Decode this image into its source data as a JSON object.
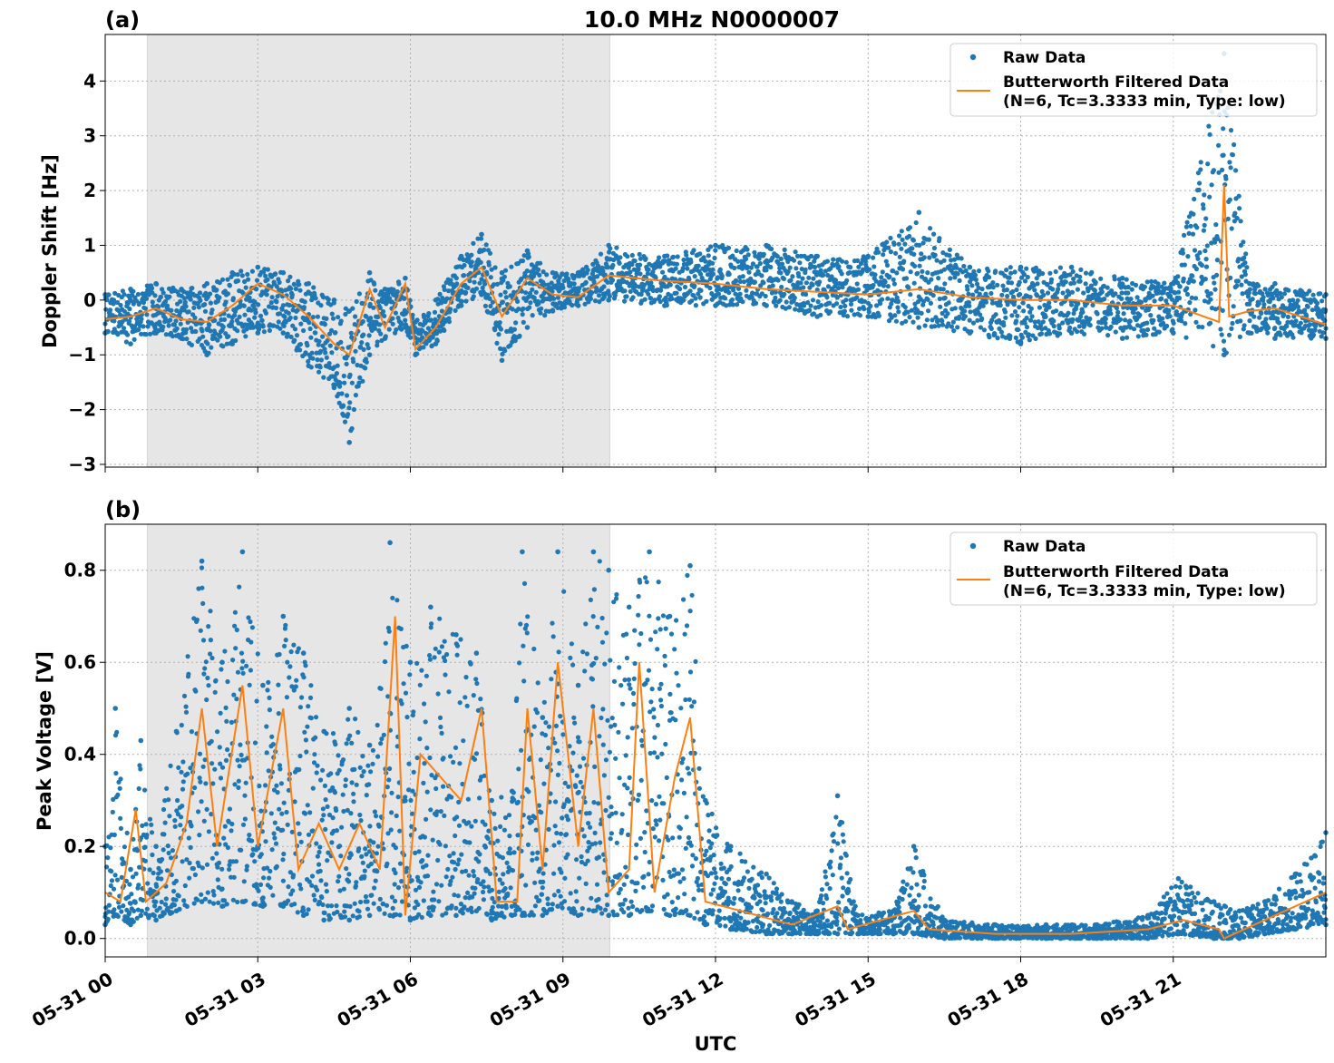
{
  "figure": {
    "title": "10.0 MHz N0000007",
    "xlabel": "UTC",
    "x_ticks": [
      "05-31 00",
      "05-31 03",
      "05-31 06",
      "05-31 09",
      "05-31 12",
      "05-31 15",
      "05-31 18",
      "05-31 21"
    ],
    "colors": {
      "raw": "#1f77b4",
      "filtered": "#ff7f0e",
      "shade": "#e6e6e6",
      "grid": "#b0b0b0"
    }
  },
  "chart_data": [
    {
      "type": "scatter",
      "panel": "(a)",
      "title": "10.0 MHz N0000007",
      "xlabel": "UTC",
      "ylabel": "Doppler Shift [Hz]",
      "xlim_hours": [
        0,
        24
      ],
      "ylim": [
        -3.05,
        4.85
      ],
      "y_ticks": [
        4,
        3,
        2,
        1,
        0,
        -1,
        -2,
        -3
      ],
      "y_tick_labels": [
        "4",
        "3",
        "2",
        "1",
        "0",
        "−1",
        "−2",
        "−3"
      ],
      "grid": true,
      "legend_position": "top-right",
      "shaded_interval_hours": [
        0.83,
        9.92
      ],
      "series": [
        {
          "name": "Raw Data",
          "style": "points",
          "envelope": [
            {
              "hour": 0.0,
              "low": -0.6,
              "high": 0.1
            },
            {
              "hour": 0.5,
              "low": -0.8,
              "high": 0.2
            },
            {
              "hour": 1.0,
              "low": -0.6,
              "high": 0.3
            },
            {
              "hour": 1.5,
              "low": -0.7,
              "high": 0.2
            },
            {
              "hour": 2.0,
              "low": -1.0,
              "high": 0.3
            },
            {
              "hour": 2.5,
              "low": -0.8,
              "high": 0.5
            },
            {
              "hour": 3.0,
              "low": -0.6,
              "high": 0.6
            },
            {
              "hour": 3.5,
              "low": -0.6,
              "high": 0.5
            },
            {
              "hour": 4.0,
              "low": -1.2,
              "high": 0.3
            },
            {
              "hour": 4.5,
              "low": -1.6,
              "high": 0.0
            },
            {
              "hour": 4.8,
              "low": -2.6,
              "high": -0.2
            },
            {
              "hour": 5.2,
              "low": -1.0,
              "high": 0.5
            },
            {
              "hour": 5.5,
              "low": -0.7,
              "high": 0.2
            },
            {
              "hour": 5.9,
              "low": -0.5,
              "high": 0.4
            },
            {
              "hour": 6.1,
              "low": -1.0,
              "high": -0.4
            },
            {
              "hour": 6.5,
              "low": -0.8,
              "high": 0.0
            },
            {
              "hour": 7.0,
              "low": -0.1,
              "high": 0.8
            },
            {
              "hour": 7.4,
              "low": 0.1,
              "high": 1.2
            },
            {
              "hour": 7.8,
              "low": -1.1,
              "high": 0.5
            },
            {
              "hour": 8.3,
              "low": -0.5,
              "high": 0.9
            },
            {
              "hour": 8.8,
              "low": -0.2,
              "high": 0.5
            },
            {
              "hour": 9.3,
              "low": -0.1,
              "high": 0.5
            },
            {
              "hour": 9.9,
              "low": 0.0,
              "high": 1.0
            },
            {
              "hour": 11.0,
              "low": -0.1,
              "high": 0.8
            },
            {
              "hour": 12.0,
              "low": -0.1,
              "high": 1.0
            },
            {
              "hour": 13.0,
              "low": -0.1,
              "high": 1.0
            },
            {
              "hour": 14.0,
              "low": -0.3,
              "high": 0.8
            },
            {
              "hour": 15.0,
              "low": -0.3,
              "high": 0.8
            },
            {
              "hour": 16.0,
              "low": -0.5,
              "high": 1.6
            },
            {
              "hour": 17.0,
              "low": -0.6,
              "high": 0.6
            },
            {
              "hour": 18.0,
              "low": -0.8,
              "high": 0.6
            },
            {
              "hour": 19.0,
              "low": -0.6,
              "high": 0.6
            },
            {
              "hour": 20.0,
              "low": -0.7,
              "high": 0.4
            },
            {
              "hour": 21.0,
              "low": -0.6,
              "high": 0.3
            },
            {
              "hour": 22.0,
              "low": -1.0,
              "high": 4.5
            },
            {
              "hour": 22.5,
              "low": -0.6,
              "high": 0.3
            },
            {
              "hour": 23.0,
              "low": -0.7,
              "high": 0.3
            },
            {
              "hour": 24.0,
              "low": -0.7,
              "high": 0.1
            }
          ]
        },
        {
          "name": "Butterworth Filtered Data\n(N=6, Tc=3.3333 min, Type: low)",
          "style": "line",
          "points": [
            {
              "hour": 0.0,
              "y": -0.35
            },
            {
              "hour": 0.5,
              "y": -0.3
            },
            {
              "hour": 1.0,
              "y": -0.15
            },
            {
              "hour": 1.5,
              "y": -0.35
            },
            {
              "hour": 2.0,
              "y": -0.4
            },
            {
              "hour": 2.5,
              "y": -0.1
            },
            {
              "hour": 3.0,
              "y": 0.3
            },
            {
              "hour": 3.5,
              "y": 0.1
            },
            {
              "hour": 4.0,
              "y": -0.3
            },
            {
              "hour": 4.5,
              "y": -0.8
            },
            {
              "hour": 4.8,
              "y": -1.0
            },
            {
              "hour": 5.2,
              "y": 0.2
            },
            {
              "hour": 5.5,
              "y": -0.5
            },
            {
              "hour": 5.9,
              "y": 0.3
            },
            {
              "hour": 6.1,
              "y": -0.9
            },
            {
              "hour": 6.5,
              "y": -0.5
            },
            {
              "hour": 7.0,
              "y": 0.3
            },
            {
              "hour": 7.4,
              "y": 0.6
            },
            {
              "hour": 7.8,
              "y": -0.3
            },
            {
              "hour": 8.3,
              "y": 0.4
            },
            {
              "hour": 8.8,
              "y": 0.1
            },
            {
              "hour": 9.3,
              "y": 0.05
            },
            {
              "hour": 9.9,
              "y": 0.45
            },
            {
              "hour": 11.0,
              "y": 0.35
            },
            {
              "hour": 12.0,
              "y": 0.3
            },
            {
              "hour": 13.0,
              "y": 0.2
            },
            {
              "hour": 14.0,
              "y": 0.15
            },
            {
              "hour": 15.0,
              "y": 0.1
            },
            {
              "hour": 16.0,
              "y": 0.2
            },
            {
              "hour": 17.0,
              "y": 0.05
            },
            {
              "hour": 18.0,
              "y": 0.0
            },
            {
              "hour": 19.0,
              "y": 0.0
            },
            {
              "hour": 20.0,
              "y": -0.1
            },
            {
              "hour": 21.0,
              "y": -0.1
            },
            {
              "hour": 21.9,
              "y": -0.4
            },
            {
              "hour": 22.0,
              "y": 2.1
            },
            {
              "hour": 22.1,
              "y": -0.3
            },
            {
              "hour": 22.5,
              "y": -0.2
            },
            {
              "hour": 23.0,
              "y": -0.15
            },
            {
              "hour": 24.0,
              "y": -0.45
            }
          ]
        }
      ]
    },
    {
      "type": "scatter",
      "panel": "(b)",
      "title": "",
      "xlabel": "UTC",
      "ylabel": "Peak Voltage [V]",
      "xlim_hours": [
        0,
        24
      ],
      "ylim": [
        -0.04,
        0.9
      ],
      "y_ticks": [
        0.0,
        0.2,
        0.4,
        0.6,
        0.8
      ],
      "y_tick_labels": [
        "0.0",
        "0.2",
        "0.4",
        "0.6",
        "0.8"
      ],
      "grid": true,
      "legend_position": "top-right",
      "shaded_interval_hours": [
        0.83,
        9.92
      ],
      "series": [
        {
          "name": "Raw Data",
          "style": "points",
          "envelope": [
            {
              "hour": 0.0,
              "low": 0.03,
              "high": 0.2
            },
            {
              "hour": 0.2,
              "low": 0.05,
              "high": 0.5
            },
            {
              "hour": 0.5,
              "low": 0.03,
              "high": 0.15
            },
            {
              "hour": 0.7,
              "low": 0.05,
              "high": 0.43
            },
            {
              "hour": 1.0,
              "low": 0.04,
              "high": 0.2
            },
            {
              "hour": 1.4,
              "low": 0.06,
              "high": 0.45
            },
            {
              "hour": 1.9,
              "low": 0.08,
              "high": 0.82
            },
            {
              "hour": 2.3,
              "low": 0.07,
              "high": 0.6
            },
            {
              "hour": 2.7,
              "low": 0.08,
              "high": 0.84
            },
            {
              "hour": 3.1,
              "low": 0.07,
              "high": 0.55
            },
            {
              "hour": 3.5,
              "low": 0.07,
              "high": 0.7
            },
            {
              "hour": 3.9,
              "low": 0.05,
              "high": 0.62
            },
            {
              "hour": 4.3,
              "low": 0.04,
              "high": 0.45
            },
            {
              "hour": 4.8,
              "low": 0.04,
              "high": 0.5
            },
            {
              "hour": 5.2,
              "low": 0.05,
              "high": 0.42
            },
            {
              "hour": 5.6,
              "low": 0.05,
              "high": 0.86
            },
            {
              "hour": 6.0,
              "low": 0.04,
              "high": 0.6
            },
            {
              "hour": 6.4,
              "low": 0.05,
              "high": 0.72
            },
            {
              "hour": 6.9,
              "low": 0.05,
              "high": 0.66
            },
            {
              "hour": 7.3,
              "low": 0.06,
              "high": 0.62
            },
            {
              "hour": 7.6,
              "low": 0.04,
              "high": 0.3
            },
            {
              "hour": 8.0,
              "low": 0.05,
              "high": 0.32
            },
            {
              "hour": 8.2,
              "low": 0.05,
              "high": 0.84
            },
            {
              "hour": 8.6,
              "low": 0.05,
              "high": 0.48
            },
            {
              "hour": 8.9,
              "low": 0.07,
              "high": 0.84
            },
            {
              "hour": 9.3,
              "low": 0.05,
              "high": 0.55
            },
            {
              "hour": 9.6,
              "low": 0.06,
              "high": 0.84
            },
            {
              "hour": 9.9,
              "low": 0.05,
              "high": 0.8
            },
            {
              "hour": 10.3,
              "low": 0.05,
              "high": 0.72
            },
            {
              "hour": 10.7,
              "low": 0.06,
              "high": 0.84
            },
            {
              "hour": 11.1,
              "low": 0.05,
              "high": 0.7
            },
            {
              "hour": 11.5,
              "low": 0.05,
              "high": 0.81
            },
            {
              "hour": 11.8,
              "low": 0.03,
              "high": 0.3
            },
            {
              "hour": 12.3,
              "low": 0.02,
              "high": 0.2
            },
            {
              "hour": 13.0,
              "low": 0.01,
              "high": 0.14
            },
            {
              "hour": 13.5,
              "low": 0.01,
              "high": 0.08
            },
            {
              "hour": 14.0,
              "low": 0.01,
              "high": 0.06
            },
            {
              "hour": 14.4,
              "low": 0.01,
              "high": 0.31
            },
            {
              "hour": 14.8,
              "low": 0.01,
              "high": 0.05
            },
            {
              "hour": 15.5,
              "low": 0.01,
              "high": 0.06
            },
            {
              "hour": 15.9,
              "low": 0.01,
              "high": 0.2
            },
            {
              "hour": 16.5,
              "low": 0.0,
              "high": 0.04
            },
            {
              "hour": 17.5,
              "low": 0.0,
              "high": 0.03
            },
            {
              "hour": 18.5,
              "low": 0.0,
              "high": 0.03
            },
            {
              "hour": 19.5,
              "low": 0.0,
              "high": 0.03
            },
            {
              "hour": 20.5,
              "low": 0.0,
              "high": 0.05
            },
            {
              "hour": 21.1,
              "low": 0.01,
              "high": 0.13
            },
            {
              "hour": 21.8,
              "low": 0.0,
              "high": 0.08
            },
            {
              "hour": 22.3,
              "low": 0.0,
              "high": 0.06
            },
            {
              "hour": 22.8,
              "low": 0.01,
              "high": 0.08
            },
            {
              "hour": 23.4,
              "low": 0.02,
              "high": 0.14
            },
            {
              "hour": 24.0,
              "low": 0.03,
              "high": 0.23
            }
          ]
        },
        {
          "name": "Butterworth Filtered Data\n(N=6, Tc=3.3333 min, Type: low)",
          "style": "line",
          "points": [
            {
              "hour": 0.0,
              "y": 0.1
            },
            {
              "hour": 0.3,
              "y": 0.08
            },
            {
              "hour": 0.6,
              "y": 0.28
            },
            {
              "hour": 0.8,
              "y": 0.08
            },
            {
              "hour": 1.2,
              "y": 0.12
            },
            {
              "hour": 1.6,
              "y": 0.25
            },
            {
              "hour": 1.9,
              "y": 0.5
            },
            {
              "hour": 2.2,
              "y": 0.2
            },
            {
              "hour": 2.7,
              "y": 0.55
            },
            {
              "hour": 3.0,
              "y": 0.2
            },
            {
              "hour": 3.5,
              "y": 0.5
            },
            {
              "hour": 3.8,
              "y": 0.15
            },
            {
              "hour": 4.2,
              "y": 0.25
            },
            {
              "hour": 4.6,
              "y": 0.15
            },
            {
              "hour": 5.0,
              "y": 0.25
            },
            {
              "hour": 5.4,
              "y": 0.15
            },
            {
              "hour": 5.7,
              "y": 0.7
            },
            {
              "hour": 5.9,
              "y": 0.05
            },
            {
              "hour": 6.2,
              "y": 0.4
            },
            {
              "hour": 6.6,
              "y": 0.35
            },
            {
              "hour": 7.0,
              "y": 0.3
            },
            {
              "hour": 7.4,
              "y": 0.5
            },
            {
              "hour": 7.7,
              "y": 0.08
            },
            {
              "hour": 8.1,
              "y": 0.08
            },
            {
              "hour": 8.3,
              "y": 0.5
            },
            {
              "hour": 8.6,
              "y": 0.15
            },
            {
              "hour": 8.9,
              "y": 0.6
            },
            {
              "hour": 9.3,
              "y": 0.2
            },
            {
              "hour": 9.6,
              "y": 0.5
            },
            {
              "hour": 9.9,
              "y": 0.1
            },
            {
              "hour": 10.3,
              "y": 0.15
            },
            {
              "hour": 10.5,
              "y": 0.6
            },
            {
              "hour": 10.8,
              "y": 0.1
            },
            {
              "hour": 11.2,
              "y": 0.35
            },
            {
              "hour": 11.5,
              "y": 0.48
            },
            {
              "hour": 11.8,
              "y": 0.08
            },
            {
              "hour": 12.5,
              "y": 0.06
            },
            {
              "hour": 13.5,
              "y": 0.03
            },
            {
              "hour": 14.4,
              "y": 0.07
            },
            {
              "hour": 14.6,
              "y": 0.02
            },
            {
              "hour": 15.9,
              "y": 0.06
            },
            {
              "hour": 16.2,
              "y": 0.02
            },
            {
              "hour": 17.5,
              "y": 0.01
            },
            {
              "hour": 19.0,
              "y": 0.01
            },
            {
              "hour": 20.5,
              "y": 0.02
            },
            {
              "hour": 21.2,
              "y": 0.04
            },
            {
              "hour": 21.9,
              "y": 0.02
            },
            {
              "hour": 22.0,
              "y": 0.0
            },
            {
              "hour": 23.0,
              "y": 0.05
            },
            {
              "hour": 24.0,
              "y": 0.1
            }
          ]
        }
      ]
    }
  ]
}
